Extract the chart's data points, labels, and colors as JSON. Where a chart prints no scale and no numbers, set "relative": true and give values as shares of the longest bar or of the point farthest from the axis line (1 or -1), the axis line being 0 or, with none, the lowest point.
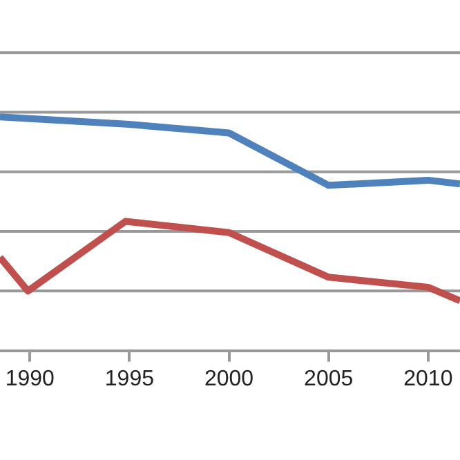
{
  "chart_data": {
    "type": "line",
    "relative": true,
    "xlim": [
      1988.5,
      2011.6
    ],
    "xticks": [
      1990,
      1995,
      2000,
      2005,
      2010
    ],
    "grid": "y",
    "marker": "none",
    "line_style": "solid",
    "legend": false,
    "series": [
      {
        "color": "#4f81bd",
        "x": [
          1988.5,
          1995,
          2000,
          2005,
          2010,
          2011.6
        ],
        "values": [
          1.0,
          0.968,
          0.931,
          0.707,
          0.729,
          0.713
        ]
      },
      {
        "color": "#c0504d",
        "x": [
          1988.5,
          1989.9,
          1994.8,
          2000,
          2005,
          2010,
          2011.6
        ],
        "values": [
          0.399,
          0.255,
          0.553,
          0.505,
          0.314,
          0.271,
          0.213
        ]
      }
    ]
  }
}
